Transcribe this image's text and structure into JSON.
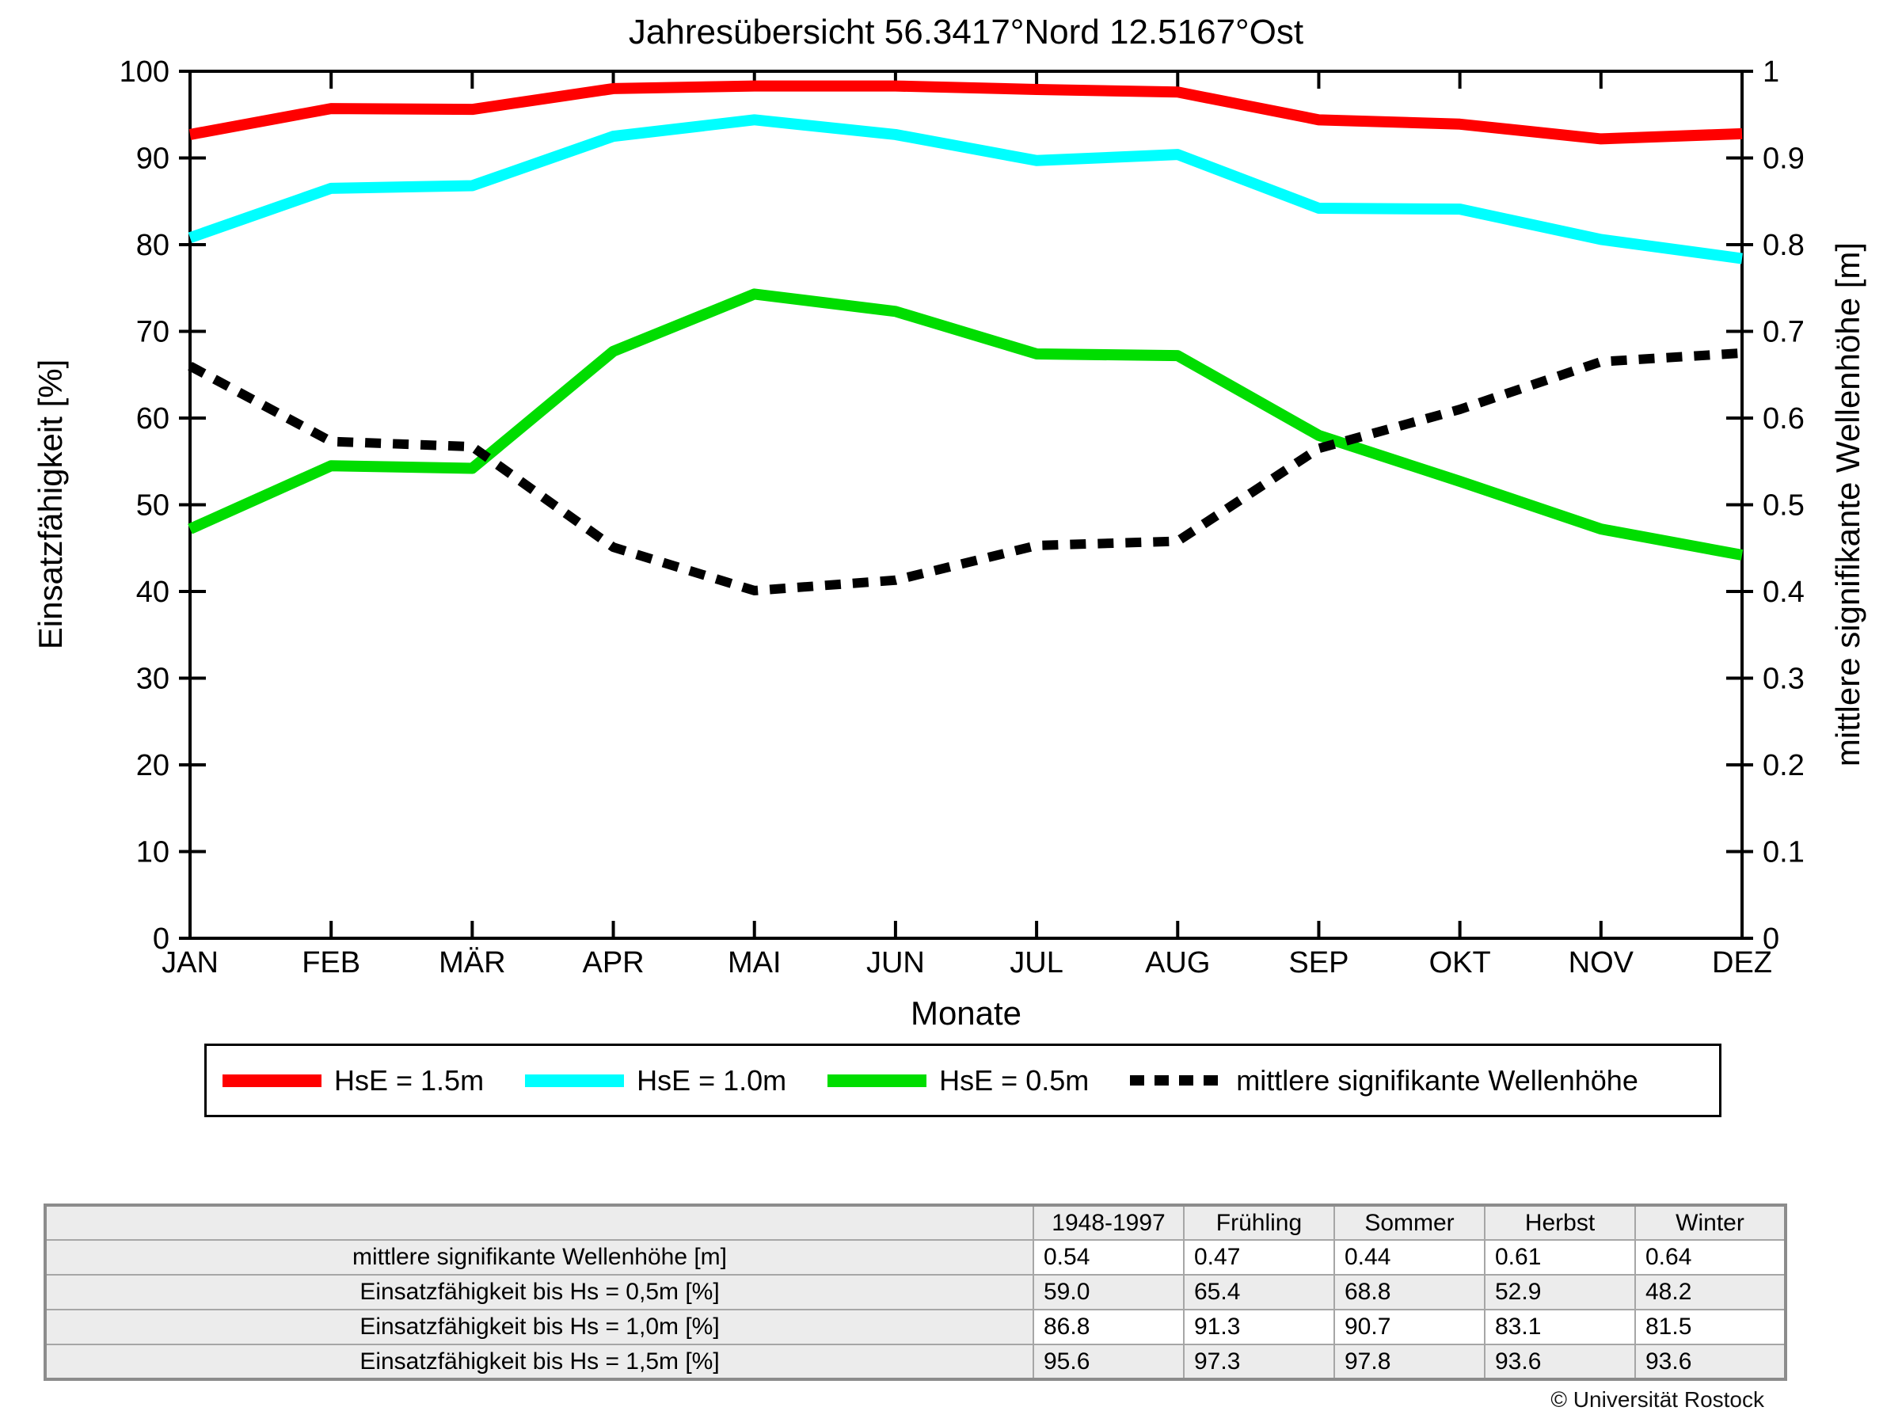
{
  "chart_data": {
    "type": "line",
    "title": "Jahresübersicht  56.3417°Nord  12.5167°Ost",
    "xlabel": "Monate",
    "ylabel_left": "Einsatzfähigkeit [%]",
    "ylabel_right": "mittlere signifikante Wellenhöhe [m]",
    "categories": [
      "JAN",
      "FEB",
      "MÄR",
      "APR",
      "MAI",
      "JUN",
      "JUL",
      "AUG",
      "SEP",
      "OKT",
      "NOV",
      "DEZ"
    ],
    "ylim_left": [
      0,
      100
    ],
    "ylim_right": [
      0,
      1
    ],
    "yticks_left": [
      "0",
      "10",
      "20",
      "30",
      "40",
      "50",
      "60",
      "70",
      "80",
      "90",
      "100"
    ],
    "yticks_right": [
      "0",
      "0.1",
      "0.2",
      "0.3",
      "0.4",
      "0.5",
      "0.6",
      "0.7",
      "0.8",
      "0.9",
      "1"
    ],
    "grid": false,
    "legend_position": "bottom",
    "axis_color": "#000000",
    "series": [
      {
        "name": "HsE = 1.5m",
        "axis": "left",
        "color": "#ff0000",
        "style": "solid",
        "values": [
          92.7,
          95.7,
          95.6,
          98.0,
          98.3,
          98.3,
          97.9,
          97.6,
          94.4,
          93.9,
          92.2,
          92.8
        ]
      },
      {
        "name": "HsE = 1.0m",
        "axis": "left",
        "color": "#00ffff",
        "style": "solid",
        "values": [
          80.8,
          86.5,
          86.8,
          92.5,
          94.4,
          92.7,
          89.7,
          90.4,
          84.2,
          84.1,
          80.6,
          78.4
        ]
      },
      {
        "name": "HsE = 0.5m",
        "axis": "left",
        "color": "#00dd00",
        "style": "solid",
        "values": [
          47.2,
          54.5,
          54.2,
          67.7,
          74.3,
          72.3,
          67.4,
          67.2,
          58.0,
          52.7,
          47.2,
          44.2
        ]
      },
      {
        "name": "mittlere signifikante Wellenhöhe",
        "axis": "right",
        "color": "#000000",
        "style": "dotted",
        "values": [
          0.66,
          0.573,
          0.567,
          0.451,
          0.401,
          0.413,
          0.453,
          0.458,
          0.565,
          0.61,
          0.665,
          0.675
        ]
      }
    ]
  },
  "table": {
    "columns": [
      "",
      "1948-1997",
      "Frühling",
      "Sommer",
      "Herbst",
      "Winter"
    ],
    "rows": [
      {
        "label": "mittlere signifikante Wellenhöhe [m]",
        "values": [
          "0.54",
          "0.47",
          "0.44",
          "0.61",
          "0.64"
        ]
      },
      {
        "label": "Einsatzfähigkeit bis Hs = 0,5m [%]",
        "values": [
          "59.0",
          "65.4",
          "68.8",
          "52.9",
          "48.2"
        ]
      },
      {
        "label": "Einsatzfähigkeit bis Hs = 1,0m [%]",
        "values": [
          "86.8",
          "91.3",
          "90.7",
          "83.1",
          "81.5"
        ]
      },
      {
        "label": "Einsatzfähigkeit bis Hs = 1,5m [%]",
        "values": [
          "95.6",
          "97.3",
          "97.8",
          "93.6",
          "93.6"
        ]
      }
    ]
  },
  "footer": {
    "copyright": "© Universität Rostock"
  }
}
